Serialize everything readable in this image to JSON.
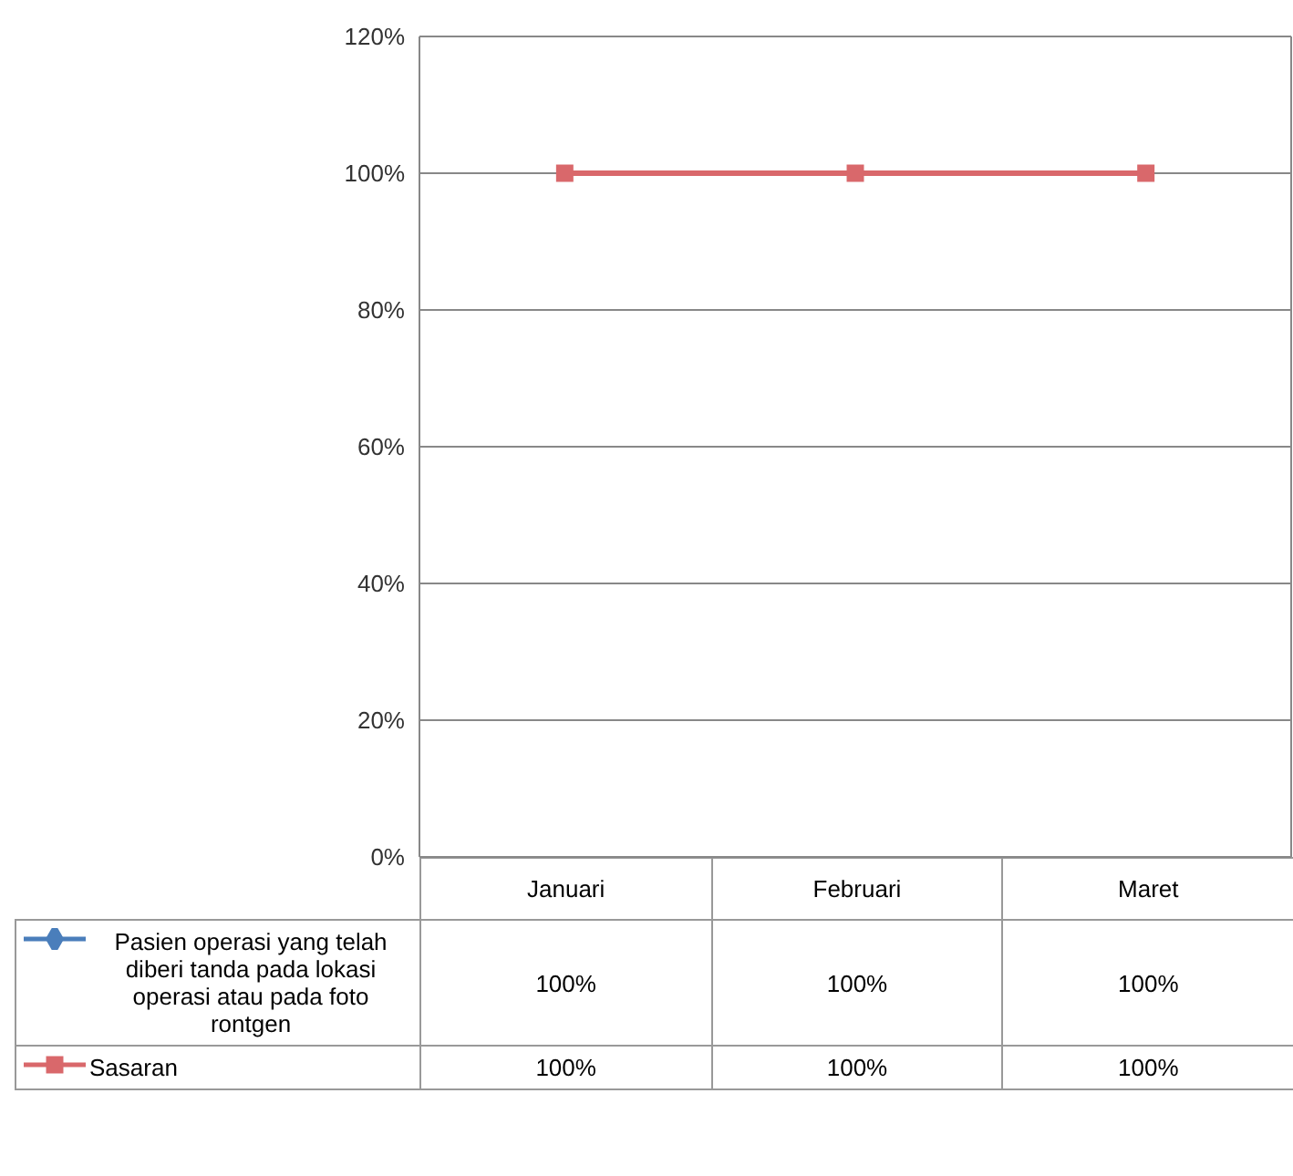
{
  "chart_data": {
    "type": "line",
    "categories": [
      "Januari",
      "Februari",
      "Maret"
    ],
    "series": [
      {
        "name": "Pasien operasi yang telah diberi tanda pada lokasi operasi atau pada foto rontgen",
        "color": "#4a7ebb",
        "marker": "diamond",
        "values": [
          null,
          null,
          null
        ],
        "value_labels": [
          "100%",
          "100%",
          "100%"
        ]
      },
      {
        "name": "Sasaran",
        "color": "#d9686b",
        "marker": "square",
        "values": [
          100,
          100,
          100
        ],
        "value_labels": [
          "100%",
          "100%",
          "100%"
        ]
      }
    ],
    "ylim": [
      0,
      120
    ],
    "yticks": [
      {
        "value": 0,
        "label": "0%"
      },
      {
        "value": 20,
        "label": "20%"
      },
      {
        "value": 40,
        "label": "40%"
      },
      {
        "value": 60,
        "label": "60%"
      },
      {
        "value": 80,
        "label": "80%"
      },
      {
        "value": 100,
        "label": "100%"
      },
      {
        "value": 120,
        "label": "120%"
      }
    ],
    "grid": "y",
    "legend": "bottom"
  }
}
